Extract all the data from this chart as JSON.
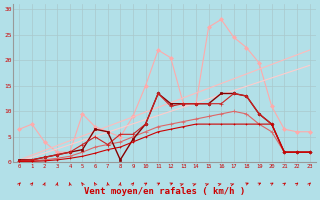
{
  "bg_color": "#b2e0e8",
  "grid_color": "#aac8cc",
  "xlabel": "Vent moyen/en rafales ( km/h )",
  "xlabel_color": "#cc0000",
  "xlabel_fontsize": 6.5,
  "ylim": [
    0,
    31
  ],
  "xlim": [
    -0.5,
    23.5
  ],
  "lines": [
    {
      "x": [
        0,
        1,
        2,
        3,
        4,
        5,
        6,
        7,
        8,
        9,
        10,
        11,
        12,
        13,
        14,
        15,
        16,
        17,
        18,
        19,
        20,
        21,
        22,
        23
      ],
      "y": [
        6.5,
        7.5,
        4.0,
        2.0,
        2.0,
        9.5,
        7.0,
        6.0,
        5.0,
        9.0,
        15.0,
        22.0,
        20.5,
        11.5,
        11.5,
        26.5,
        28.0,
        24.5,
        22.5,
        19.5,
        11.0,
        6.5,
        6.0,
        6.0
      ],
      "color": "#ffaaaa",
      "lw": 0.8,
      "marker": "D",
      "ms": 2.0
    },
    {
      "x": [
        0,
        23
      ],
      "y": [
        0.5,
        22.0
      ],
      "color": "#ffbbbb",
      "lw": 0.8,
      "marker": null,
      "ms": 0
    },
    {
      "x": [
        0,
        23
      ],
      "y": [
        0.2,
        19.0
      ],
      "color": "#ffcccc",
      "lw": 0.8,
      "marker": null,
      "ms": 0
    },
    {
      "x": [
        0,
        1,
        2,
        3,
        4,
        5,
        6,
        7,
        8,
        9,
        10,
        11,
        12,
        13,
        14,
        15,
        16,
        17,
        18,
        19,
        20,
        21,
        22,
        23
      ],
      "y": [
        0.2,
        0.3,
        0.5,
        0.8,
        1.2,
        2.0,
        3.0,
        3.5,
        4.0,
        5.0,
        6.0,
        7.0,
        7.5,
        8.0,
        8.5,
        9.0,
        9.5,
        10.0,
        9.5,
        7.5,
        6.0,
        2.0,
        2.0,
        2.0
      ],
      "color": "#dd6666",
      "lw": 0.8,
      "marker": "+",
      "ms": 2.5
    },
    {
      "x": [
        0,
        1,
        2,
        3,
        4,
        5,
        6,
        7,
        8,
        9,
        10,
        11,
        12,
        13,
        14,
        15,
        16,
        17,
        18,
        19,
        20,
        21,
        22,
        23
      ],
      "y": [
        0.5,
        0.5,
        1.0,
        1.5,
        2.0,
        2.5,
        6.5,
        6.0,
        0.5,
        4.5,
        7.5,
        13.5,
        11.5,
        11.5,
        11.5,
        11.5,
        13.5,
        13.5,
        13.0,
        9.5,
        7.5,
        2.0,
        2.0,
        2.0
      ],
      "color": "#880000",
      "lw": 1.0,
      "marker": "s",
      "ms": 2.0
    },
    {
      "x": [
        0,
        1,
        2,
        3,
        4,
        5,
        6,
        7,
        8,
        9,
        10,
        11,
        12,
        13,
        14,
        15,
        16,
        17,
        18,
        19,
        20,
        21,
        22,
        23
      ],
      "y": [
        0.3,
        0.5,
        1.0,
        1.5,
        2.0,
        3.5,
        5.0,
        3.5,
        5.5,
        5.5,
        7.5,
        13.5,
        11.0,
        11.5,
        11.5,
        11.5,
        11.5,
        13.5,
        13.0,
        9.5,
        7.5,
        2.0,
        2.0,
        2.0
      ],
      "color": "#cc2222",
      "lw": 0.8,
      "marker": "+",
      "ms": 3.0
    },
    {
      "x": [
        0,
        1,
        2,
        3,
        4,
        5,
        6,
        7,
        8,
        9,
        10,
        11,
        12,
        13,
        14,
        15,
        16,
        17,
        18,
        19,
        20,
        21,
        22,
        23
      ],
      "y": [
        0.2,
        0.2,
        0.3,
        0.5,
        0.8,
        1.2,
        1.8,
        2.5,
        3.0,
        4.0,
        5.0,
        6.0,
        6.5,
        7.0,
        7.5,
        7.5,
        7.5,
        7.5,
        7.5,
        7.5,
        7.5,
        2.0,
        2.0,
        2.0
      ],
      "color": "#cc0000",
      "lw": 0.8,
      "marker": "+",
      "ms": 2.0
    }
  ],
  "wind_arrow_angles": [
    200,
    200,
    190,
    185,
    175,
    165,
    165,
    175,
    185,
    200,
    215,
    220,
    225,
    230,
    230,
    230,
    235,
    230,
    225,
    220,
    215,
    210,
    205,
    200
  ]
}
